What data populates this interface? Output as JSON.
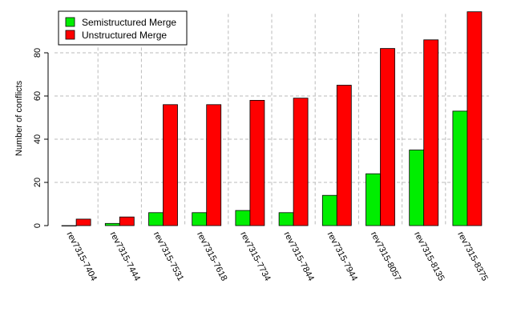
{
  "chart_data": {
    "type": "bar",
    "title": "",
    "xlabel": "",
    "ylabel": "Number of conflicts",
    "ylim": [
      0,
      98
    ],
    "yticks": [
      0,
      20,
      40,
      60,
      80
    ],
    "grid": true,
    "legend_position": "top-left",
    "categories": [
      "rev7315-7404",
      "rev7315-7444",
      "rev7315-7531",
      "rev7315-7618",
      "rev7315-7734",
      "rev7315-7844",
      "rev7315-7944",
      "rev7315-8057",
      "rev7315-8135",
      "rev7315-8375"
    ],
    "series": [
      {
        "name": "Semistructured Merge",
        "color": "#00ee00",
        "values": [
          0,
          1,
          6,
          6,
          7,
          6,
          14,
          24,
          35,
          53
        ]
      },
      {
        "name": "Unstructured Merge",
        "color": "#ff0000",
        "values": [
          3,
          4,
          56,
          56,
          58,
          59,
          65,
          82,
          86,
          99
        ]
      }
    ]
  }
}
